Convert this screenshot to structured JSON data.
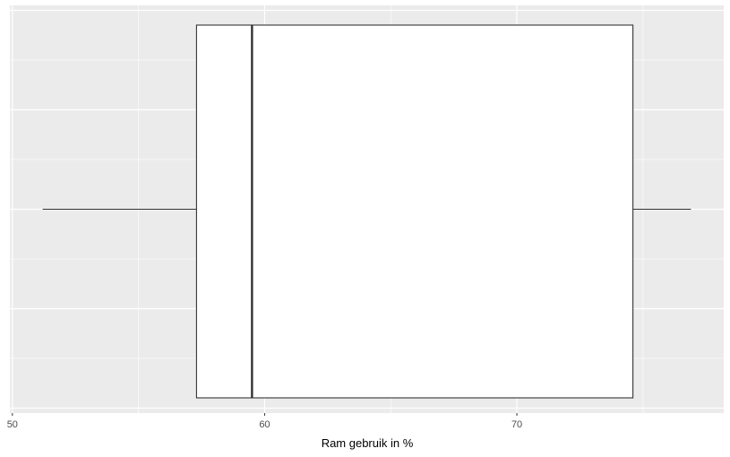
{
  "chart_data": {
    "type": "boxplot",
    "orientation": "horizontal",
    "xlabel": "Ram gebruik in %",
    "ylabel": "",
    "xlim": [
      49.9,
      78.2
    ],
    "x_ticks": [
      50,
      60,
      70
    ],
    "x_minor_ticks": [
      55,
      65,
      75
    ],
    "grid": true,
    "legend": "none",
    "box": {
      "whisker_low": 51.2,
      "q1": 57.3,
      "median": 59.5,
      "q3": 74.6,
      "whisker_high": 76.9
    },
    "colors": {
      "panel_background": "#ebebeb",
      "grid_line": "#ffffff",
      "box_fill": "#ffffff",
      "box_line": "#333333"
    }
  }
}
